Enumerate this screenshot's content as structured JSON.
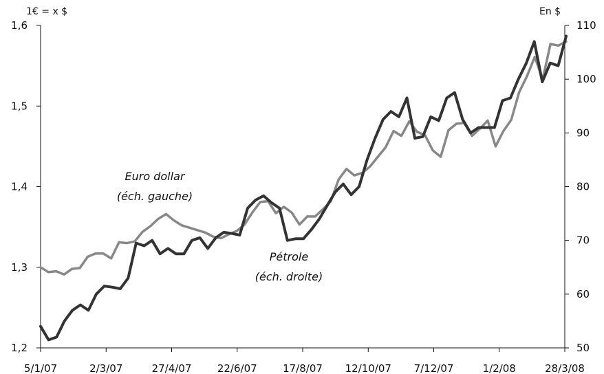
{
  "chart_data": {
    "type": "line",
    "left_axis_unit": "1€ = x $",
    "right_axis_unit": "En $",
    "x_tick_labels": [
      "5/1/07",
      "2/3/07",
      "27/4/07",
      "22/6/07",
      "17/8/07",
      "12/10/07",
      "7/12/07",
      "1/2/08",
      "28/3/08"
    ],
    "y_left": {
      "range": [
        1.2,
        1.6
      ],
      "ticks": [
        "1,2",
        "1,3",
        "1,4",
        "1,5",
        "1,6"
      ]
    },
    "y_right": {
      "range": [
        50,
        110
      ],
      "ticks": [
        "50",
        "60",
        "70",
        "80",
        "90",
        "100",
        "110"
      ]
    },
    "grid": false,
    "annotations": [
      {
        "series": 0,
        "lines": [
          "Euro dollar",
          "(éch. gauche)"
        ]
      },
      {
        "series": 1,
        "lines": [
          "Pétrole",
          "(éch. droite)"
        ]
      }
    ],
    "series": [
      {
        "name": "Euro dollar",
        "axis": "left",
        "color": "#888888",
        "values": [
          1.3,
          1.294,
          1.295,
          1.291,
          1.298,
          1.299,
          1.313,
          1.317,
          1.317,
          1.311,
          1.331,
          1.33,
          1.332,
          1.344,
          1.351,
          1.36,
          1.366,
          1.358,
          1.352,
          1.349,
          1.346,
          1.343,
          1.338,
          1.336,
          1.341,
          1.345,
          1.353,
          1.368,
          1.381,
          1.382,
          1.367,
          1.375,
          1.368,
          1.353,
          1.363,
          1.363,
          1.372,
          1.382,
          1.409,
          1.422,
          1.414,
          1.417,
          1.425,
          1.437,
          1.449,
          1.469,
          1.463,
          1.481,
          1.468,
          1.464,
          1.445,
          1.437,
          1.47,
          1.478,
          1.479,
          1.463,
          1.472,
          1.482,
          1.45,
          1.469,
          1.483,
          1.517,
          1.537,
          1.561,
          1.533,
          1.577,
          1.575,
          1.58
        ]
      },
      {
        "name": "Pétrole",
        "axis": "right",
        "color": "#333333",
        "values": [
          54.0,
          51.5,
          52.0,
          55.0,
          57.0,
          58.0,
          57.0,
          60.0,
          61.5,
          61.3,
          61.0,
          63.0,
          69.5,
          69.0,
          70.0,
          67.5,
          68.5,
          67.5,
          67.5,
          70.0,
          70.5,
          68.5,
          70.5,
          71.5,
          71.3,
          71.0,
          76.0,
          77.5,
          78.3,
          77.0,
          76.0,
          70.0,
          70.3,
          70.3,
          72.0,
          74.0,
          76.5,
          79.0,
          80.5,
          78.5,
          80.0,
          85.0,
          89.0,
          92.5,
          94.0,
          93.0,
          96.5,
          89.0,
          89.3,
          93.0,
          92.3,
          96.5,
          97.5,
          92.5,
          90.0,
          91.0,
          91.0,
          91.0,
          96.0,
          96.5,
          100.0,
          103.0,
          107.0,
          99.5,
          103.0,
          102.5,
          108.0
        ]
      }
    ]
  }
}
